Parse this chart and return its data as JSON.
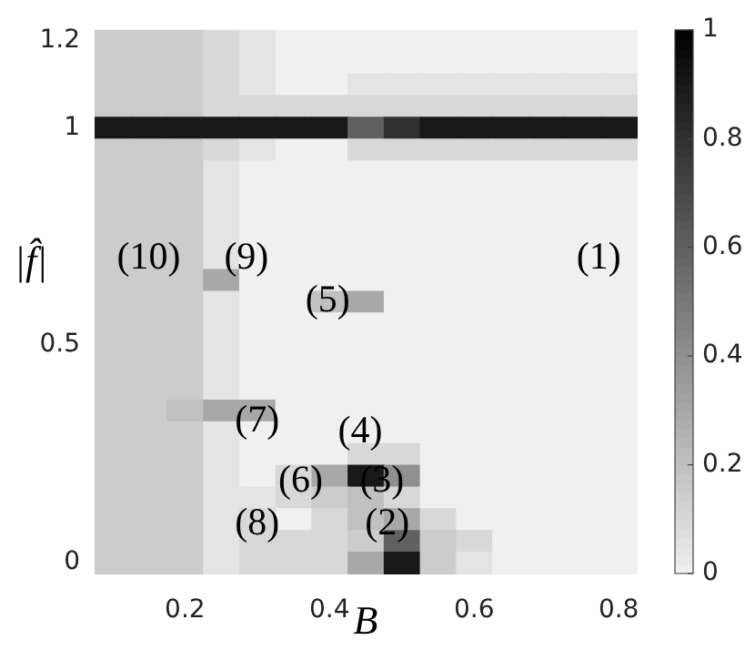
{
  "chart_data": {
    "type": "heatmap",
    "xlabel": "B",
    "ylabel": "|f̂|",
    "categories": [
      null,
      null,
      "0.2",
      null,
      null,
      null,
      "0.4",
      null,
      null,
      null,
      "0.6",
      null,
      null,
      null,
      "0.8"
    ],
    "y_categories": [
      "1.2",
      null,
      null,
      null,
      "1",
      null,
      null,
      null,
      null,
      null,
      null,
      null,
      null,
      null,
      "0.5",
      null,
      null,
      null,
      null,
      null,
      null,
      null,
      null,
      null,
      "0"
    ],
    "cells": [
      [
        0.15,
        0.15,
        0.15,
        0.1,
        0.05,
        0,
        0,
        0,
        0,
        0,
        0,
        0,
        0,
        0,
        0
      ],
      [
        0.15,
        0.15,
        0.15,
        0.1,
        0.05,
        0,
        0,
        0,
        0,
        0,
        0,
        0,
        0,
        0,
        0
      ],
      [
        0.15,
        0.15,
        0.15,
        0.1,
        0.05,
        0,
        0,
        0.05,
        0.05,
        0.05,
        0.05,
        0.05,
        0.05,
        0.05,
        0.05
      ],
      [
        0.15,
        0.15,
        0.15,
        0.1,
        0.1,
        0.1,
        0.1,
        0.1,
        0.1,
        0.1,
        0.1,
        0.1,
        0.1,
        0.1,
        0.1
      ],
      [
        0.9,
        0.9,
        0.9,
        0.9,
        0.9,
        0.9,
        0.9,
        0.6,
        0.8,
        0.9,
        0.9,
        0.9,
        0.9,
        0.9,
        0.9
      ],
      [
        0.15,
        0.15,
        0.15,
        0.1,
        0.05,
        0,
        0,
        0.1,
        0.1,
        0.1,
        0.1,
        0.1,
        0.1,
        0.1,
        0.1
      ],
      [
        0.15,
        0.15,
        0.15,
        0.05,
        0,
        0,
        0,
        0,
        0,
        0,
        0,
        0,
        0,
        0,
        0
      ],
      [
        0.15,
        0.15,
        0.15,
        0.05,
        0,
        0,
        0,
        0,
        0,
        0,
        0,
        0,
        0,
        0,
        0
      ],
      [
        0.15,
        0.15,
        0.15,
        0.05,
        0,
        0,
        0,
        0,
        0,
        0,
        0,
        0,
        0,
        0,
        0
      ],
      [
        0.15,
        0.15,
        0.15,
        0.05,
        0,
        0,
        0,
        0,
        0,
        0,
        0,
        0,
        0,
        0,
        0
      ],
      [
        0.15,
        0.15,
        0.15,
        0.05,
        0,
        0,
        0,
        0,
        0,
        0,
        0,
        0,
        0,
        0,
        0
      ],
      [
        0.15,
        0.15,
        0.15,
        0.3,
        0,
        0,
        0,
        0,
        0,
        0,
        0,
        0,
        0,
        0,
        0
      ],
      [
        0.15,
        0.15,
        0.15,
        0.05,
        0,
        0,
        0.2,
        0.3,
        0,
        0,
        0,
        0,
        0,
        0,
        0
      ],
      [
        0.15,
        0.15,
        0.15,
        0.05,
        0,
        0,
        0,
        0,
        0,
        0,
        0,
        0,
        0,
        0,
        0
      ],
      [
        0.15,
        0.15,
        0.15,
        0.05,
        0,
        0,
        0,
        0,
        0,
        0,
        0,
        0,
        0,
        0,
        0
      ],
      [
        0.15,
        0.15,
        0.15,
        0.05,
        0,
        0,
        0,
        0,
        0,
        0,
        0,
        0,
        0,
        0,
        0
      ],
      [
        0.15,
        0.15,
        0.15,
        0.05,
        0,
        0,
        0,
        0,
        0,
        0,
        0,
        0,
        0,
        0,
        0
      ],
      [
        0.15,
        0.15,
        0.2,
        0.3,
        0.3,
        0,
        0,
        0,
        0,
        0,
        0,
        0,
        0,
        0,
        0
      ],
      [
        0.15,
        0.15,
        0.15,
        0.05,
        0,
        0,
        0,
        0,
        0,
        0,
        0,
        0,
        0,
        0,
        0
      ],
      [
        0.15,
        0.15,
        0.15,
        0.05,
        0,
        0,
        0,
        0.1,
        0.1,
        0,
        0,
        0,
        0,
        0,
        0
      ],
      [
        0.15,
        0.15,
        0.15,
        0.05,
        0,
        0.1,
        0.3,
        0.9,
        0.4,
        0,
        0,
        0,
        0,
        0,
        0
      ],
      [
        0.15,
        0.15,
        0.15,
        0.05,
        0.05,
        0.1,
        0.15,
        0.2,
        0.1,
        0,
        0,
        0,
        0,
        0,
        0
      ],
      [
        0.15,
        0.15,
        0.15,
        0.05,
        0.1,
        0,
        0.1,
        0.2,
        0.3,
        0.1,
        0,
        0,
        0,
        0,
        0
      ],
      [
        0.15,
        0.15,
        0.15,
        0.05,
        0.1,
        0.1,
        0.1,
        0.15,
        0.6,
        0.15,
        0.1,
        0,
        0,
        0,
        0
      ],
      [
        0.15,
        0.15,
        0.15,
        0.05,
        0.1,
        0.1,
        0.1,
        0.3,
        0.9,
        0.15,
        0.05,
        0,
        0,
        0,
        0
      ]
    ],
    "clim": [
      0,
      1
    ],
    "cticks": [
      0,
      0.2,
      0.4,
      0.6,
      0.8,
      1
    ],
    "annotations": [
      "(1)",
      "(2)",
      "(3)",
      "(4)",
      "(5)",
      "(6)",
      "(7)",
      "(8)",
      "(9)",
      "(10)"
    ]
  }
}
